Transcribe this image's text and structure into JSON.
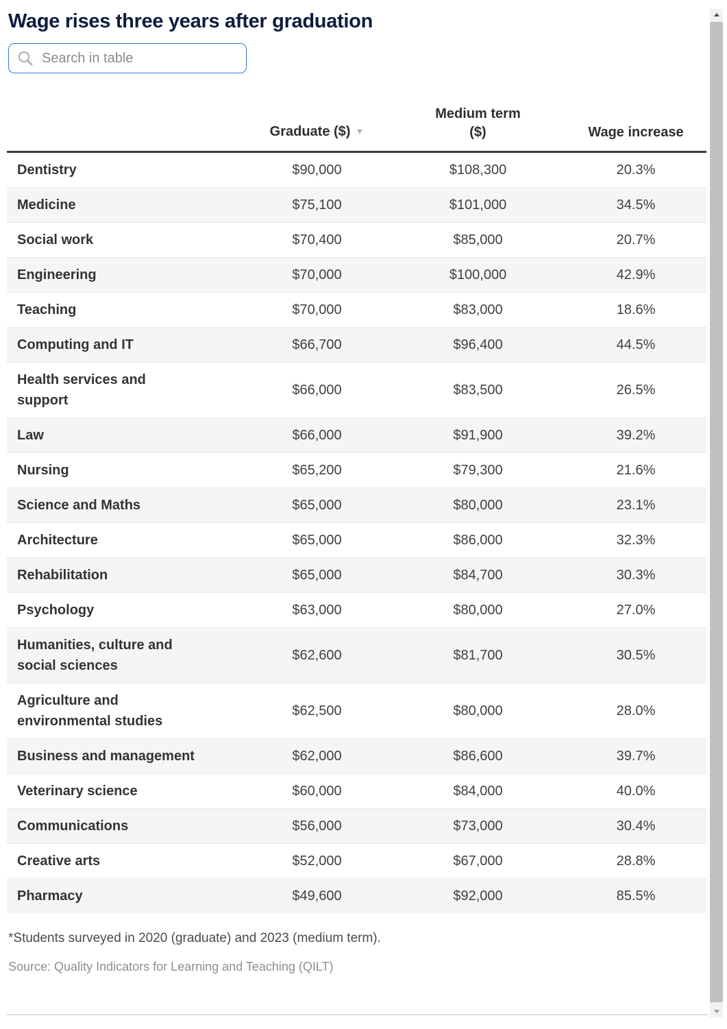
{
  "title": "Wage rises three years after graduation",
  "search": {
    "placeholder": "Search in table"
  },
  "table": {
    "headers": {
      "field": "",
      "graduate": "Graduate ($)",
      "medium": "Medium term\n($)",
      "wage": "Wage increase"
    },
    "sort_icon": "▼"
  },
  "chart_data": {
    "type": "table",
    "title": "Wage rises three years after graduation",
    "columns": [
      "",
      "Graduate ($)",
      "Medium term ($)",
      "Wage increase"
    ],
    "sorted_by": "Graduate ($) descending",
    "rows": [
      {
        "label": "Dentistry",
        "graduate": "$90,000",
        "medium": "$108,300",
        "increase": "20.3%"
      },
      {
        "label": "Medicine",
        "graduate": "$75,100",
        "medium": "$101,000",
        "increase": "34.5%"
      },
      {
        "label": "Social work",
        "graduate": "$70,400",
        "medium": "$85,000",
        "increase": "20.7%"
      },
      {
        "label": "Engineering",
        "graduate": "$70,000",
        "medium": "$100,000",
        "increase": "42.9%"
      },
      {
        "label": "Teaching",
        "graduate": "$70,000",
        "medium": "$83,000",
        "increase": "18.6%"
      },
      {
        "label": "Computing and IT",
        "graduate": "$66,700",
        "medium": "$96,400",
        "increase": "44.5%"
      },
      {
        "label": "Health services and\nsupport",
        "graduate": "$66,000",
        "medium": "$83,500",
        "increase": "26.5%"
      },
      {
        "label": "Law",
        "graduate": "$66,000",
        "medium": "$91,900",
        "increase": "39.2%"
      },
      {
        "label": "Nursing",
        "graduate": "$65,200",
        "medium": "$79,300",
        "increase": "21.6%"
      },
      {
        "label": "Science and Maths",
        "graduate": "$65,000",
        "medium": "$80,000",
        "increase": "23.1%"
      },
      {
        "label": "Architecture",
        "graduate": "$65,000",
        "medium": "$86,000",
        "increase": "32.3%"
      },
      {
        "label": "Rehabilitation",
        "graduate": "$65,000",
        "medium": "$84,700",
        "increase": "30.3%"
      },
      {
        "label": "Psychology",
        "graduate": "$63,000",
        "medium": "$80,000",
        "increase": "27.0%"
      },
      {
        "label": "Humanities, culture and\nsocial sciences",
        "graduate": "$62,600",
        "medium": "$81,700",
        "increase": "30.5%"
      },
      {
        "label": "Agriculture and\nenvironmental studies",
        "graduate": "$62,500",
        "medium": "$80,000",
        "increase": "28.0%"
      },
      {
        "label": "Business and management",
        "graduate": "$62,000",
        "medium": "$86,600",
        "increase": "39.7%"
      },
      {
        "label": "Veterinary science",
        "graduate": "$60,000",
        "medium": "$84,000",
        "increase": "40.0%"
      },
      {
        "label": "Communications",
        "graduate": "$56,000",
        "medium": "$73,000",
        "increase": "30.4%"
      },
      {
        "label": "Creative arts",
        "graduate": "$52,000",
        "medium": "$67,000",
        "increase": "28.8%"
      },
      {
        "label": "Pharmacy",
        "graduate": "$49,600",
        "medium": "$92,000",
        "increase": "85.5%"
      }
    ]
  },
  "footnote": "*Students surveyed in 2020 (graduate) and 2023 (medium term).",
  "source": {
    "prefix": "Source: ",
    "text": "Quality Indicators for Learning and Teaching (QILT)"
  },
  "colors": {
    "title": "#0e1c3d",
    "search_border": "#2d7dd2",
    "header_rule": "#3a3a3a",
    "zebra_row": "#f5f5f5",
    "cell_text": "#3f3f3f",
    "source_text": "#8e8e8e",
    "scrollbar_thumb": "#c1c1c1"
  }
}
